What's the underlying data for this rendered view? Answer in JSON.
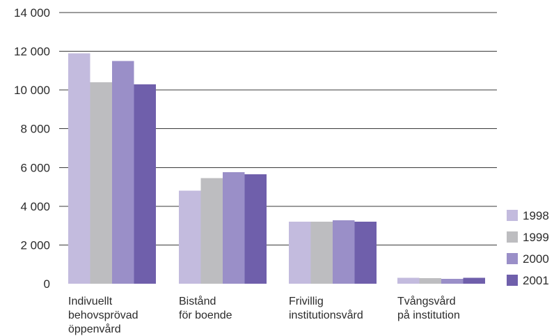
{
  "chart_data": {
    "type": "bar",
    "title": "",
    "xlabel": "",
    "ylabel": "",
    "categories": [
      [
        "Indivuellt",
        "behovsprövad",
        "öppenvård"
      ],
      [
        "Bistånd",
        "för boende"
      ],
      [
        "Frivillig",
        "institutionsvård"
      ],
      [
        "Tvångsvård",
        "på institution"
      ]
    ],
    "series": [
      {
        "name": "1998",
        "color": "#c3bbde",
        "values": [
          11900,
          4800,
          3200,
          300
        ]
      },
      {
        "name": "1999",
        "color": "#bdbdc0",
        "values": [
          10400,
          5450,
          3200,
          280
        ]
      },
      {
        "name": "2000",
        "color": "#9a8fc8",
        "values": [
          11500,
          5750,
          3270,
          250
        ]
      },
      {
        "name": "2001",
        "color": "#6f5fab",
        "values": [
          10300,
          5650,
          3200,
          310
        ]
      }
    ],
    "ylim": [
      0,
      14000
    ],
    "yticks": [
      {
        "value": 0,
        "label": "0"
      },
      {
        "value": 2000,
        "label": "2 000"
      },
      {
        "value": 4000,
        "label": "4 000"
      },
      {
        "value": 6000,
        "label": "6 000"
      },
      {
        "value": 8000,
        "label": "8 000"
      },
      {
        "value": 10000,
        "label": "10 000"
      },
      {
        "value": 12000,
        "label": "12 000"
      },
      {
        "value": 14000,
        "label": "14 000"
      }
    ],
    "grid": true,
    "legend_position": "bottom-right"
  }
}
